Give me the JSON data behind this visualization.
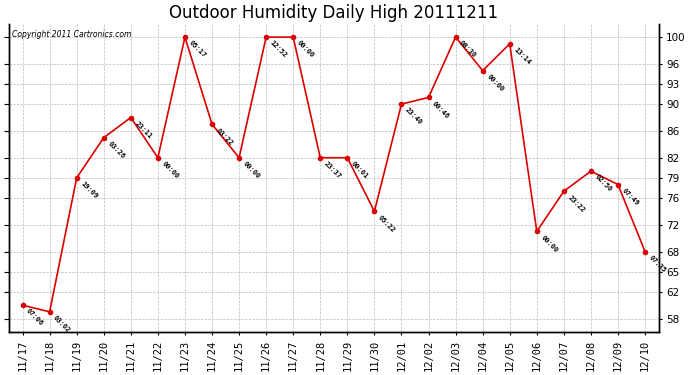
{
  "title": "Outdoor Humidity Daily High 20111211",
  "copyright": "Copyright 2011 Cartronics.com",
  "x_labels": [
    "11/17",
    "11/18",
    "11/19",
    "11/20",
    "11/21",
    "11/22",
    "11/23",
    "11/24",
    "11/25",
    "11/26",
    "11/27",
    "11/28",
    "11/29",
    "11/30",
    "12/01",
    "12/02",
    "12/03",
    "12/04",
    "12/05",
    "12/06",
    "12/07",
    "12/08",
    "12/09",
    "12/10"
  ],
  "y_values": [
    60,
    59,
    79,
    85,
    88,
    82,
    100,
    87,
    82,
    100,
    100,
    82,
    82,
    74,
    90,
    91,
    100,
    95,
    99,
    71,
    77,
    80,
    78,
    68
  ],
  "point_labels": [
    "07:06",
    "03:02",
    "19:09",
    "03:26",
    "23:11",
    "00:00",
    "05:17",
    "03:22",
    "00:00",
    "12:52",
    "00:00",
    "23:37",
    "00:01",
    "05:22",
    "23:40",
    "00:46",
    "08:30",
    "00:00",
    "13:14",
    "00:00",
    "23:22",
    "02:50",
    "07:49",
    "07:35"
  ],
  "line_color": "#dd0000",
  "marker_color": "#dd0000",
  "bg_fig": "#ffffff",
  "bg_plot": "#ffffff",
  "grid_color": "#bbbbbb",
  "title_fontsize": 12,
  "label_fontsize": 5.5,
  "tick_fontsize": 7.5,
  "ylim_min": 56,
  "ylim_max": 102,
  "yticks": [
    58,
    62,
    65,
    68,
    72,
    76,
    79,
    82,
    86,
    90,
    93,
    96,
    100
  ]
}
